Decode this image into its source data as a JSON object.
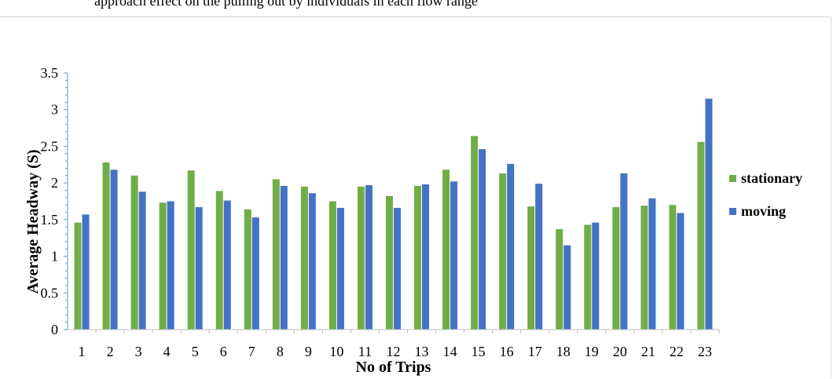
{
  "caption": "approach effect on the pulling out by individuals in each flow range",
  "chart_data": {
    "type": "bar",
    "title": "",
    "xlabel": "No of Trips",
    "ylabel": "Average Headway (S)",
    "ylim": [
      0,
      3.5
    ],
    "yticks": [
      0,
      0.5,
      1,
      1.5,
      2,
      2.5,
      3,
      3.5
    ],
    "ytick_labels": [
      "0",
      "0.5",
      "1",
      "1.5",
      "2",
      "2.5",
      "3",
      "3.5"
    ],
    "grid": false,
    "legend_position": "right",
    "categories": [
      "1",
      "2",
      "3",
      "4",
      "5",
      "6",
      "7",
      "8",
      "9",
      "10",
      "11",
      "12",
      "13",
      "14",
      "15",
      "16",
      "17",
      "18",
      "19",
      "20",
      "21",
      "22",
      "23"
    ],
    "series": [
      {
        "name": "stationary",
        "color": "#70ad47",
        "values": [
          1.46,
          2.28,
          2.1,
          1.73,
          2.17,
          1.89,
          1.64,
          2.05,
          1.95,
          1.75,
          1.95,
          1.82,
          1.96,
          2.18,
          2.64,
          2.13,
          1.68,
          1.37,
          1.43,
          1.67,
          1.69,
          1.7,
          2.56
        ]
      },
      {
        "name": "moving",
        "color": "#4472c4",
        "values": [
          1.57,
          2.18,
          1.88,
          1.75,
          1.67,
          1.76,
          1.53,
          1.96,
          1.86,
          1.66,
          1.97,
          1.66,
          1.98,
          2.02,
          2.46,
          2.26,
          1.99,
          1.15,
          1.46,
          2.13,
          1.79,
          1.59,
          3.15
        ]
      }
    ]
  }
}
